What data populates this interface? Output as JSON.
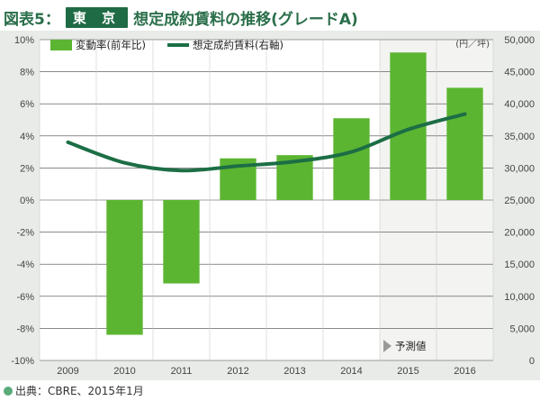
{
  "title": {
    "prefix": "図表5：",
    "badge": "東 京",
    "text": "想定成約賃料の推移(グレードA)"
  },
  "source": "出典：CBRE、2015年1月",
  "chart_data": {
    "type": "bar+line",
    "categories": [
      "2009",
      "2010",
      "2011",
      "2012",
      "2013",
      "2014",
      "2015",
      "2016"
    ],
    "series": [
      {
        "name": "変動率(前年比)",
        "type": "bar",
        "axis": "left",
        "color": "#5cb531",
        "values": [
          null,
          -8.4,
          -5.2,
          2.6,
          2.8,
          5.1,
          9.2,
          7.0
        ]
      },
      {
        "name": "想定成約賃料(右軸)",
        "type": "line",
        "axis": "right",
        "color": "#1c6e45",
        "values": [
          34000,
          30800,
          29600,
          30300,
          31000,
          32500,
          36000,
          38400
        ]
      }
    ],
    "left_axis": {
      "ylim": [
        -10,
        10
      ],
      "ticks": [
        "-10%",
        "-8%",
        "-6%",
        "-4%",
        "-2%",
        "0%",
        "2%",
        "4%",
        "6%",
        "8%",
        "10%"
      ]
    },
    "right_axis": {
      "ylim": [
        0,
        50000
      ],
      "ticks": [
        "0",
        "5,000",
        "10,000",
        "15,000",
        "20,000",
        "25,000",
        "30,000",
        "35,000",
        "40,000",
        "45,000",
        "50,000"
      ],
      "unit": "(円／坪)"
    },
    "forecast_label": "予測値",
    "forecast_from_index": 6,
    "colors": {
      "bar": "#5cb531",
      "line": "#1c6e45",
      "title": "#2a6e4a",
      "background": "#e8ebe7",
      "forecast_bg": "#f3f4f2"
    }
  }
}
